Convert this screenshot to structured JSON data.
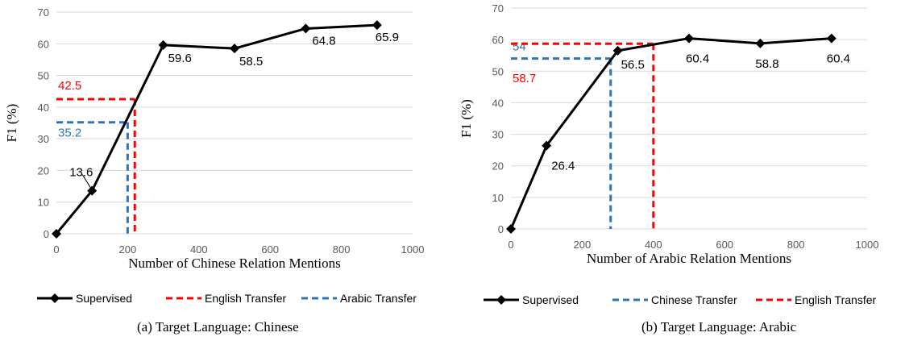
{
  "chart_data": [
    {
      "type": "line",
      "caption": "(a) Target Language: Chinese",
      "xlabel": "Number of Chinese Relation Mentions",
      "ylabel": "F1 (%)",
      "xlim": [
        0,
        1000
      ],
      "ylim": [
        0,
        70
      ],
      "x_ticks": [
        0,
        200,
        400,
        600,
        800,
        1000
      ],
      "y_ticks": [
        0,
        10,
        20,
        30,
        40,
        50,
        60,
        70
      ],
      "grid": "horizontal",
      "legend_position": "bottom",
      "series": [
        {
          "name": "Supervised",
          "style": "solid-diamond",
          "color": "#000000",
          "x": [
            0,
            100,
            300,
            500,
            700,
            900
          ],
          "y": [
            0,
            13.6,
            59.6,
            58.5,
            64.8,
            65.9
          ],
          "labels": [
            "",
            "13.6",
            "59.6",
            "58.5",
            "64.8",
            "65.9"
          ]
        },
        {
          "name": "English Transfer",
          "style": "dashed",
          "color": "#ff0000",
          "y": 42.5,
          "x": 220,
          "label": "42.5"
        },
        {
          "name": "Arabic Transfer",
          "style": "dashed",
          "color": "#2e75b6",
          "y": 35.2,
          "x": 200,
          "label": "35.2"
        }
      ]
    },
    {
      "type": "line",
      "caption": "(b) Target Language: Arabic",
      "xlabel": "Number of Arabic Relation Mentions",
      "ylabel": "F1 (%)",
      "xlim": [
        0,
        1000
      ],
      "ylim": [
        0,
        70
      ],
      "x_ticks": [
        0,
        200,
        400,
        600,
        800,
        1000
      ],
      "y_ticks": [
        0,
        10,
        20,
        30,
        40,
        50,
        60,
        70
      ],
      "grid": "horizontal",
      "legend_position": "bottom",
      "series": [
        {
          "name": "Supervised",
          "style": "solid-diamond",
          "color": "#000000",
          "x": [
            0,
            100,
            300,
            500,
            700,
            900
          ],
          "y": [
            0,
            26.4,
            56.5,
            60.4,
            58.8,
            60.4
          ],
          "labels": [
            "",
            "26.4",
            "56.5",
            "60.4",
            "58.8",
            "60.4"
          ]
        },
        {
          "name": "Chinese Transfer",
          "style": "dashed",
          "color": "#2e75b6",
          "y": 54,
          "x": 280,
          "label": "54"
        },
        {
          "name": "English Transfer",
          "style": "dashed",
          "color": "#ff0000",
          "y": 58.7,
          "x": 400,
          "label": "58.7"
        }
      ]
    }
  ]
}
